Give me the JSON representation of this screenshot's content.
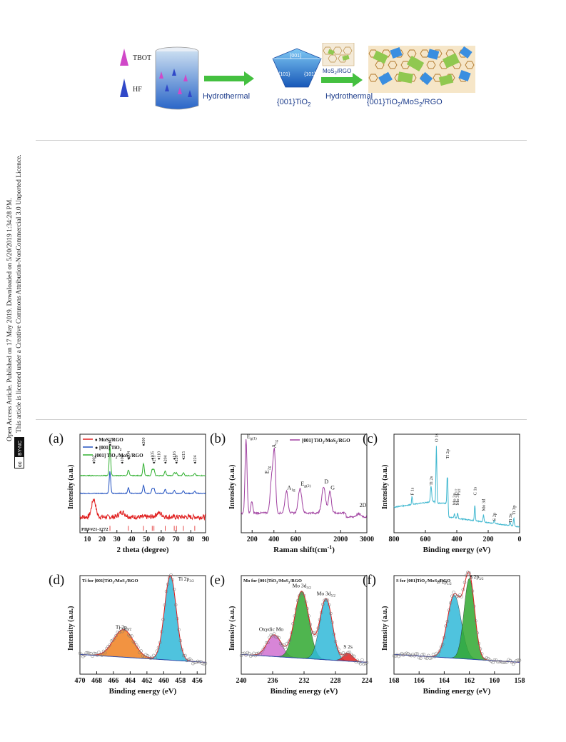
{
  "sidebar": {
    "line1": "Open Access Article. Published on 17 May 2019. Downloaded on 5/20/2019 1:34:28 PM.",
    "line2": "This article is licensed under a Creative Commons Attribution-NonCommercial 3.0 Unported Licence.",
    "badge_cc": "cc",
    "badge_by": "BY-NC"
  },
  "scheme": {
    "tbot": "TBOT",
    "hf": "HF",
    "step1": "Hydrothermal",
    "step2": "Hydrothermal",
    "facet_top": "{001}",
    "facet_left": "{101}",
    "facet_right": "{101}",
    "product1": "{001}TiO",
    "product1_sub": "2",
    "mos2_label": "MoS",
    "mos2_sub": "2",
    "mos2_suffix": "/RGO",
    "product2_a": "{001}TiO",
    "product2_sub1": "2",
    "product2_b": "/MoS",
    "product2_sub2": "2",
    "product2_c": "/RGO"
  },
  "chart_data": [
    {
      "panel": "(a)",
      "type": "line",
      "xlabel": "2 theta (degree)",
      "ylabel": "Intensity (a.u.)",
      "xlim": [
        5,
        90
      ],
      "xticks": [
        "10",
        "20",
        "30",
        "40",
        "50",
        "60",
        "70",
        "80",
        "90"
      ],
      "legend": [
        {
          "marker": "♦",
          "name": "MoS",
          "sub": "2",
          "suffix": "/RGO",
          "color": "#e02020"
        },
        {
          "marker": "●",
          "name": "[001] TiO",
          "sub": "2",
          "suffix": "",
          "color": "#2050c0"
        },
        {
          "marker": "",
          "name": "[001] TiO",
          "sub": "2",
          "suffix": "/MoS",
          "sub2": "2",
          "suffix2": "/RGO",
          "color": "#30b030"
        }
      ],
      "peaks": [
        {
          "label": "002",
          "x": 14.3
        },
        {
          "label": "101",
          "x": 25.3
        },
        {
          "label": "100",
          "x": 33.5
        },
        {
          "label": "004",
          "x": 37.8
        },
        {
          "label": "200",
          "x": 48.0
        },
        {
          "label": "105",
          "x": 53.9
        },
        {
          "label": "211",
          "x": 55.1
        },
        {
          "label": "110",
          "x": 58.3
        },
        {
          "label": "204",
          "x": 62.7
        },
        {
          "label": "116",
          "x": 68.8
        },
        {
          "label": "220",
          "x": 70.3
        },
        {
          "label": "215",
          "x": 75.0
        },
        {
          "label": "224",
          "x": 82.7
        }
      ],
      "pdf_label": "PDF#21-1272",
      "series": [
        {
          "name": "MoS2/RGO",
          "color": "#e02020",
          "baseline": 0.16,
          "noise": 0.025,
          "peaks": [
            [
              14.3,
              0.18,
              1.4
            ],
            [
              33.5,
              0.05,
              2.0
            ],
            [
              58.5,
              0.04,
              2.0
            ]
          ]
        },
        {
          "name": "[001] TiO2",
          "color": "#2050c0",
          "baseline": 0.4,
          "noise": 0.004,
          "peaks": [
            [
              25.3,
              0.22,
              0.5
            ],
            [
              37.8,
              0.06,
              0.5
            ],
            [
              48.0,
              0.08,
              0.5
            ],
            [
              53.9,
              0.05,
              0.5
            ],
            [
              55.1,
              0.05,
              0.5
            ],
            [
              62.7,
              0.04,
              0.5
            ],
            [
              68.8,
              0.03,
              0.5
            ],
            [
              75.0,
              0.03,
              0.5
            ],
            [
              82.7,
              0.02,
              0.5
            ]
          ]
        },
        {
          "name": "[001] TiO2/MoS2/RGO",
          "color": "#30b030",
          "baseline": 0.58,
          "noise": 0.004,
          "peaks": [
            [
              25.3,
              0.3,
              0.5
            ],
            [
              37.8,
              0.06,
              0.5
            ],
            [
              48.0,
              0.12,
              0.5
            ],
            [
              53.9,
              0.06,
              0.5
            ],
            [
              55.1,
              0.06,
              0.5
            ],
            [
              62.7,
              0.05,
              0.5
            ],
            [
              68.8,
              0.03,
              0.5
            ],
            [
              70.3,
              0.03,
              0.5
            ],
            [
              75.0,
              0.03,
              0.5
            ],
            [
              82.7,
              0.02,
              0.5
            ]
          ]
        }
      ],
      "reference_lines": [
        25.3,
        37.8,
        48.0,
        53.9,
        55.1,
        62.7,
        68.8,
        70.3,
        75.0,
        82.7
      ]
    },
    {
      "panel": "(b)",
      "type": "line",
      "xlabel": "Raman shift(cm",
      "xlabel_sup": "-1",
      "xlabel_end": ")",
      "ylabel": "Intensity (a.u.)",
      "xlim": [
        100,
        3000
      ],
      "xticks": [
        "200",
        "400",
        "600",
        "2000",
        "3000"
      ],
      "legend": [
        {
          "name": "[001] TiO",
          "sub": "2",
          "suffix": "/MoS",
          "sub2": "2",
          "suffix2": "/RGO",
          "color": "#a040a0"
        }
      ],
      "peak_labels": [
        {
          "label": "E",
          "sub": "g(1)",
          "x": 144
        },
        {
          "label": "E",
          "sub": "2g",
          "x": 380
        },
        {
          "label": "A",
          "sub": "1g",
          "x": 405
        },
        {
          "label": "A",
          "sub": "1g",
          "x": 515
        },
        {
          "label": "E",
          "sub": "g(2)",
          "x": 640
        },
        {
          "label": "D",
          "x": 1350
        },
        {
          "label": "G",
          "x": 1590
        },
        {
          "label": "2D",
          "x": 2690
        }
      ],
      "series": [
        {
          "name": "[001] TiO2/MoS2/RGO",
          "color": "#a040a0"
        }
      ]
    },
    {
      "panel": "(c)",
      "type": "line",
      "xlabel": "Binding energy (eV)",
      "ylabel": "Intensity (a.u.)",
      "xlim": [
        800,
        0
      ],
      "xticks": [
        "800",
        "600",
        "400",
        "200",
        "0"
      ],
      "peak_labels": [
        {
          "label": "F 1s",
          "x": 685
        },
        {
          "label": "Ti 2s",
          "x": 564
        },
        {
          "label": "O 1s",
          "x": 530
        },
        {
          "label": "Ti 2p",
          "x": 459
        },
        {
          "label": "Mo 3p",
          "sub": "1/2",
          "x": 415
        },
        {
          "label": "Mo 3p",
          "sub": "3/2",
          "x": 395
        },
        {
          "label": "C 1s",
          "x": 285
        },
        {
          "label": "Mo 3d",
          "x": 230
        },
        {
          "label": "S 2p",
          "x": 162
        },
        {
          "label": "Ti 3s",
          "x": 60
        },
        {
          "label": "Ti 3p",
          "x": 37
        }
      ],
      "series": [
        {
          "name": "survey",
          "color": "#40b8d0"
        }
      ]
    },
    {
      "panel": "(d)",
      "type": "line",
      "title": "Ti for [001]TiO",
      "title_sub": "2",
      "title_mid": "/MoS",
      "title_sub2": "2",
      "title_end": "/RGO",
      "xlabel": "Binding energy (eV)",
      "ylabel": "Intensity (a.u.)",
      "xlim": [
        470,
        455
      ],
      "xticks": [
        "470",
        "468",
        "466",
        "464",
        "462",
        "460",
        "458",
        "456"
      ],
      "peak_labels": [
        {
          "label": "Ti 2p",
          "sub": "1/2",
          "x": 464.8
        },
        {
          "label": "Ti 2p",
          "sub": "3/2",
          "x": 459.2
        }
      ],
      "components": [
        {
          "center": 464.8,
          "height": 0.28,
          "width": 1.2,
          "color": "#f08020"
        },
        {
          "center": 459.2,
          "height": 0.86,
          "width": 0.7,
          "color": "#30b8d8"
        }
      ]
    },
    {
      "panel": "(e)",
      "type": "line",
      "title": "Mo for [001]TiO",
      "title_sub": "2",
      "title_mid": "/MoS",
      "title_sub2": "2",
      "title_end": "/RGO",
      "xlabel": "Binding energy (eV)",
      "ylabel": "Intensity (a.u.)",
      "xlim": [
        240,
        224
      ],
      "xticks": [
        "240",
        "236",
        "232",
        "228",
        "224"
      ],
      "peak_labels": [
        {
          "label": "Oxydic Mo",
          "x": 236.0
        },
        {
          "label": "Mo 3d",
          "sub": "3/2",
          "x": 232.3
        },
        {
          "label": "Mo 3d",
          "sub": "5/2",
          "x": 229.2
        },
        {
          "label": "S 2s",
          "x": 226.4
        }
      ],
      "components": [
        {
          "center": 235.8,
          "height": 0.22,
          "width": 0.9,
          "color": "#d070d0"
        },
        {
          "center": 232.3,
          "height": 0.68,
          "width": 0.9,
          "color": "#30a830"
        },
        {
          "center": 229.2,
          "height": 0.62,
          "width": 0.8,
          "color": "#30b8d8"
        },
        {
          "center": 226.4,
          "height": 0.08,
          "width": 0.6,
          "color": "#e02020"
        }
      ]
    },
    {
      "panel": "(f)",
      "type": "line",
      "title": "S for [001]TiO",
      "title_sub": "2",
      "title_mid": "/MoS",
      "title_sub2": "2",
      "title_end": "/RGO",
      "xlabel": "Binding energy (eV)",
      "ylabel": "Intensity (a.u.)",
      "xlim": [
        168,
        158
      ],
      "xticks": [
        "168",
        "166",
        "164",
        "162",
        "160",
        "158"
      ],
      "peak_labels": [
        {
          "label": "S 2p",
          "sub": "1/2",
          "x": 163.3
        },
        {
          "label": "S 2p",
          "sub": "3/2",
          "x": 162.0
        }
      ],
      "components": [
        {
          "center": 163.2,
          "height": 0.64,
          "width": 0.55,
          "color": "#30b8d8"
        },
        {
          "center": 162.0,
          "height": 0.82,
          "width": 0.42,
          "color": "#30a830"
        }
      ]
    }
  ]
}
